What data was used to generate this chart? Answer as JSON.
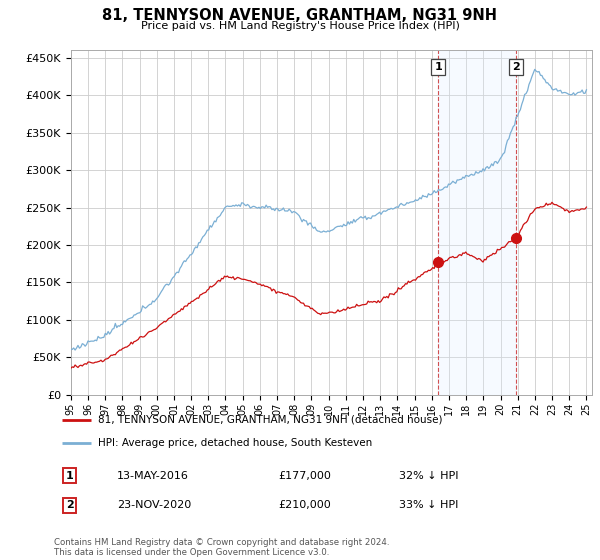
{
  "title": "81, TENNYSON AVENUE, GRANTHAM, NG31 9NH",
  "subtitle": "Price paid vs. HM Land Registry's House Price Index (HPI)",
  "ylim": [
    0,
    460000
  ],
  "yticks": [
    0,
    50000,
    100000,
    150000,
    200000,
    250000,
    300000,
    350000,
    400000,
    450000
  ],
  "ytick_labels": [
    "£0",
    "£50K",
    "£100K",
    "£150K",
    "£200K",
    "£250K",
    "£300K",
    "£350K",
    "£400K",
    "£450K"
  ],
  "hpi_color": "#7bafd4",
  "price_color": "#cc1111",
  "shade_color": "#ddeeff",
  "vline_color": "#cc3333",
  "marker_color": "#cc1111",
  "annotation_box_color": "#555555",
  "vline1_x": 2016.37,
  "vline2_x": 2020.9,
  "marker1_y": 177000,
  "marker2_y": 210000,
  "xlim_start": 1995.0,
  "xlim_end": 2025.3,
  "legend_line1": "81, TENNYSON AVENUE, GRANTHAM, NG31 9NH (detached house)",
  "legend_line2": "HPI: Average price, detached house, South Kesteven",
  "table_row1": [
    "1",
    "13-MAY-2016",
    "£177,000",
    "32% ↓ HPI"
  ],
  "table_row2": [
    "2",
    "23-NOV-2020",
    "£210,000",
    "33% ↓ HPI"
  ],
  "footer": "Contains HM Land Registry data © Crown copyright and database right 2024.\nThis data is licensed under the Open Government Licence v3.0.",
  "background_color": "#ffffff",
  "grid_color": "#cccccc"
}
